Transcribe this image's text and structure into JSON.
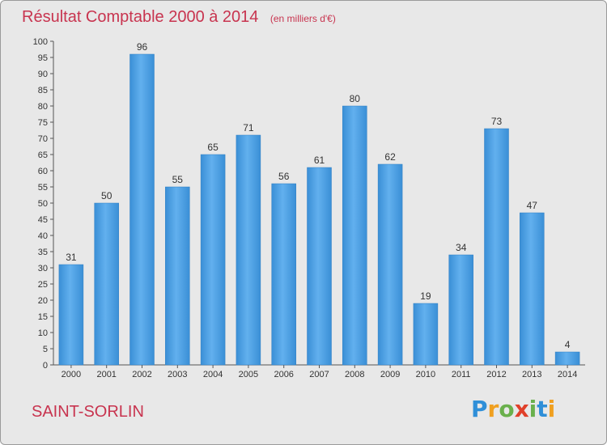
{
  "chart_data": {
    "type": "bar",
    "title": "Résultat Comptable 2000 à 2014",
    "subtitle": "(en milliers d'€)",
    "xlabel": "",
    "ylabel": "",
    "categories": [
      "2000",
      "2001",
      "2002",
      "2003",
      "2004",
      "2005",
      "2006",
      "2007",
      "2008",
      "2009",
      "2010",
      "2011",
      "2012",
      "2013",
      "2014"
    ],
    "values": [
      31,
      50,
      96,
      55,
      65,
      71,
      56,
      61,
      80,
      62,
      19,
      34,
      73,
      47,
      4
    ],
    "ylim": [
      0,
      100
    ],
    "ytick_step": 5,
    "grid": false,
    "bar_color": "#4a9fe0"
  },
  "footer": {
    "commune": "SAINT-SORLIN",
    "logo_text": "Proxiti",
    "logo_letters": [
      {
        "ch": "P",
        "color": "#2f8fd8"
      },
      {
        "ch": "r",
        "color": "#f0a020"
      },
      {
        "ch": "o",
        "color": "#6ab04c"
      },
      {
        "ch": "x",
        "color": "#e0402a"
      },
      {
        "ch": "i",
        "color": "#6ab04c"
      },
      {
        "ch": "t",
        "color": "#2f8fd8"
      },
      {
        "ch": "i",
        "color": "#f0a020"
      }
    ]
  }
}
